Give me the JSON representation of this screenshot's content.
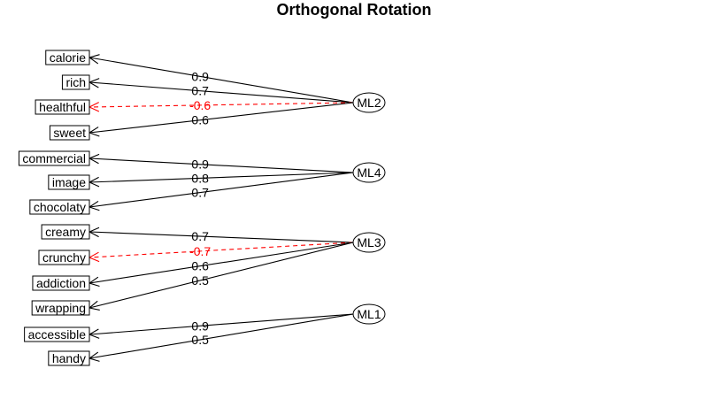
{
  "title": "Orthogonal Rotation",
  "colors": {
    "positive": "#000000",
    "negative": "#ff0000"
  },
  "factors": [
    {
      "name": "ML2",
      "items": [
        {
          "label": "calorie",
          "loading": "0.9",
          "negative": false
        },
        {
          "label": "rich",
          "loading": "0.7",
          "negative": false
        },
        {
          "label": "healthful",
          "loading": "-0.6",
          "negative": true
        },
        {
          "label": "sweet",
          "loading": "0.6",
          "negative": false
        }
      ]
    },
    {
      "name": "ML4",
      "items": [
        {
          "label": "commercial",
          "loading": "0.9",
          "negative": false
        },
        {
          "label": "image",
          "loading": "0.8",
          "negative": false
        },
        {
          "label": "chocolaty",
          "loading": "0.7",
          "negative": false
        }
      ]
    },
    {
      "name": "ML3",
      "items": [
        {
          "label": "creamy",
          "loading": "0.7",
          "negative": false
        },
        {
          "label": "crunchy",
          "loading": "-0.7",
          "negative": true
        },
        {
          "label": "addiction",
          "loading": "0.6",
          "negative": false
        },
        {
          "label": "wrapping",
          "loading": "0.5",
          "negative": false
        }
      ]
    },
    {
      "name": "ML1",
      "items": [
        {
          "label": "accessible",
          "loading": "0.9",
          "negative": false
        },
        {
          "label": "handy",
          "loading": "0.5",
          "negative": false
        }
      ]
    }
  ]
}
